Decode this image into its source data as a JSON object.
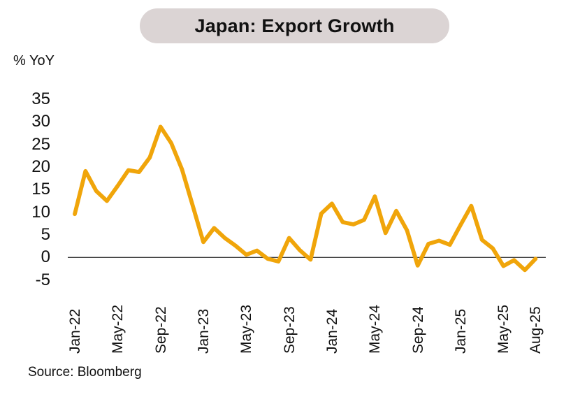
{
  "header": {
    "title": "Japan: Export Growth"
  },
  "axis": {
    "unit_label": "% YoY"
  },
  "footer": {
    "source": "Source: Bloomberg"
  },
  "colors": {
    "line": "#F0A50A",
    "title_pill_bg": "#DBD4D4",
    "zero_line": "#404040",
    "text": "#111111"
  },
  "chart_data": {
    "type": "line",
    "title": "Japan: Export Growth",
    "xlabel": "",
    "ylabel": "% YoY",
    "source": "Source: Bloomberg",
    "ylim": [
      -5,
      35
    ],
    "yticks": [
      35,
      30,
      25,
      20,
      15,
      10,
      5,
      0,
      -5
    ],
    "grid": false,
    "legend_position": "none",
    "zero_line": true,
    "x": [
      "Jan-22",
      "Feb-22",
      "Mar-22",
      "Apr-22",
      "May-22",
      "Jun-22",
      "Jul-22",
      "Aug-22",
      "Sep-22",
      "Oct-22",
      "Nov-22",
      "Dec-22",
      "Jan-23",
      "Feb-23",
      "Mar-23",
      "Apr-23",
      "May-23",
      "Jun-23",
      "Jul-23",
      "Aug-23",
      "Sep-23",
      "Oct-23",
      "Nov-23",
      "Dec-23",
      "Jan-24",
      "Feb-24",
      "Mar-24",
      "Apr-24",
      "May-24",
      "Jun-24",
      "Jul-24",
      "Aug-24",
      "Sep-24",
      "Oct-24",
      "Nov-24",
      "Dec-24",
      "Jan-25",
      "Feb-25",
      "Mar-25",
      "Apr-25",
      "May-25",
      "Jun-25",
      "Jul-25",
      "Aug-25"
    ],
    "xtick_labels": [
      "Jan-22",
      "May-22",
      "Sep-22",
      "Jan-23",
      "May-23",
      "Sep-23",
      "Jan-24",
      "May-24",
      "Sep-24",
      "Jan-25",
      "May-25",
      "Aug-25"
    ],
    "xtick_indices": [
      0,
      4,
      8,
      12,
      16,
      20,
      24,
      28,
      32,
      36,
      40,
      43
    ],
    "series": [
      {
        "name": "Japan export growth, % YoY",
        "color": "#F0A50A",
        "values": [
          9.6,
          19.1,
          14.7,
          12.5,
          15.8,
          19.3,
          18.9,
          22.1,
          28.9,
          25.3,
          19.5,
          11.5,
          3.4,
          6.5,
          4.3,
          2.6,
          0.6,
          1.5,
          -0.3,
          -0.9,
          4.3,
          1.6,
          -0.5,
          9.7,
          11.9,
          7.8,
          7.3,
          8.3,
          13.5,
          5.4,
          10.3,
          6.0,
          -1.8,
          3.0,
          3.7,
          2.8,
          7.2,
          11.4,
          3.9,
          2.0,
          -1.9,
          -0.6,
          -2.8,
          -0.3
        ]
      }
    ]
  }
}
